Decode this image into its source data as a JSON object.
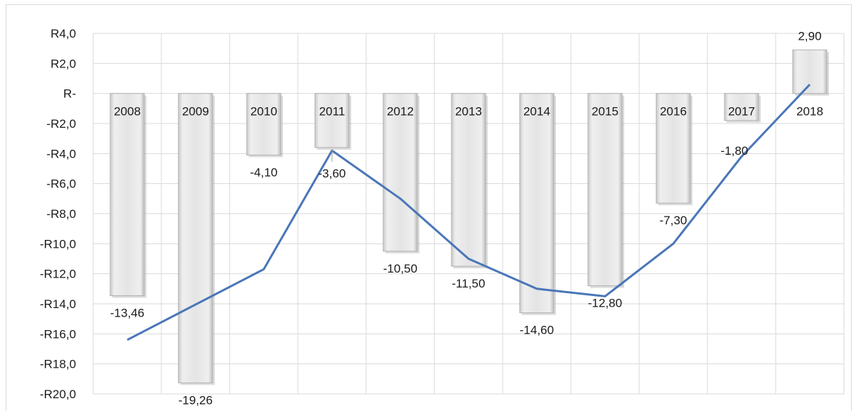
{
  "chart_data": {
    "type": "bar",
    "categories": [
      "2008",
      "2009",
      "2010",
      "2011",
      "2012",
      "2013",
      "2014",
      "2015",
      "2016",
      "2017",
      "2018"
    ],
    "series": [
      {
        "type": "bar",
        "values": [
          -13.46,
          -19.26,
          -4.1,
          -3.6,
          -10.5,
          -11.5,
          -14.6,
          -12.8,
          -7.3,
          -1.8,
          2.9
        ],
        "labels": [
          "-13,46",
          "-19,26",
          "-4,10",
          "-3,60",
          "-10,50",
          "-11,50",
          "-14,60",
          "-12,80",
          "-7,30",
          "-1,80",
          "2,90"
        ],
        "color": "#e6e6e6"
      },
      {
        "type": "line",
        "values": [
          -16.4,
          null,
          -11.7,
          -3.8,
          -7.0,
          -11.0,
          -13.0,
          -13.5,
          -10.0,
          -4.2,
          0.6
        ],
        "color": "#4a76b8"
      }
    ],
    "y_ticks": [
      "R4,0",
      "R2,0",
      "R-",
      "-R2,0",
      "-R4,0",
      "-R6,0",
      "-R8,0",
      "-R10,0",
      "-R12,0",
      "-R14,0",
      "-R16,0",
      "-R18,0",
      "-R20,0"
    ],
    "ylim": [
      -20,
      4
    ],
    "grid": true,
    "title": "",
    "xlabel": "",
    "ylabel": ""
  }
}
